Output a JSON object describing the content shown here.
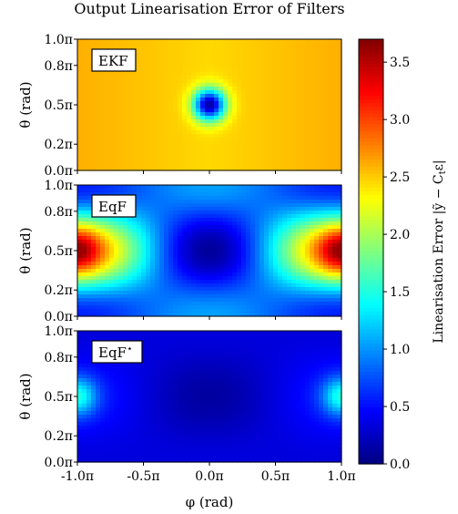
{
  "chart_data": {
    "type": "heatmap",
    "title": "Output Linearisation Error of Filters",
    "xlabel": "φ (rad)",
    "ylabel": "θ (rad)",
    "xlim": [
      -1.0,
      1.0
    ],
    "ylim": [
      0.0,
      1.0
    ],
    "x_ticks": [
      -1.0,
      -0.5,
      0.0,
      0.5,
      1.0
    ],
    "x_tick_labels": [
      "-1.0π",
      "-0.5π",
      "0.0π",
      "0.5π",
      "1.0π"
    ],
    "y_ticks": [
      0.0,
      0.2,
      0.5,
      0.8,
      1.0
    ],
    "y_tick_labels": [
      "0.0π",
      "0.2π",
      "0.5π",
      "0.8π",
      "1.0π"
    ],
    "colorbar": {
      "label": "Linearisation Error |ỹ − C",
      "label_sub": "t",
      "label_end": "ε|",
      "range": [
        0.0,
        3.7
      ],
      "ticks": [
        0.0,
        0.5,
        1.0,
        1.5,
        2.0,
        2.5,
        3.0,
        3.5
      ],
      "tick_labels": [
        "0.0",
        "0.5",
        "1.0",
        "1.5",
        "2.0",
        "2.5",
        "3.0",
        "3.5"
      ],
      "colormap": "jet"
    },
    "panels": [
      {
        "name": "EKF",
        "description_values": {
          "background": 2.55,
          "minimum": {
            "phi": 0.0,
            "theta": 0.5,
            "value": 0.1
          },
          "band_values": {
            "edge_phi": 2.6,
            "mid_phi": 2.45
          }
        }
      },
      {
        "name": "EqF",
        "description_values": {
          "center_minimum": {
            "phi": 0.0,
            "theta": 0.5,
            "value": 0.1
          },
          "edge_maximum": {
            "phi": 1.0,
            "theta": 0.5,
            "value": 3.6
          },
          "poles": 1.0
        }
      },
      {
        "name": "EqF",
        "name_sup": "⋆",
        "description_values": {
          "background": 0.3,
          "center_minimum": {
            "phi": 0.0,
            "theta": 0.5,
            "value": 0.05
          },
          "edge_maximum": {
            "phi": 1.0,
            "theta": 0.5,
            "value": 1.5
          }
        }
      }
    ]
  }
}
